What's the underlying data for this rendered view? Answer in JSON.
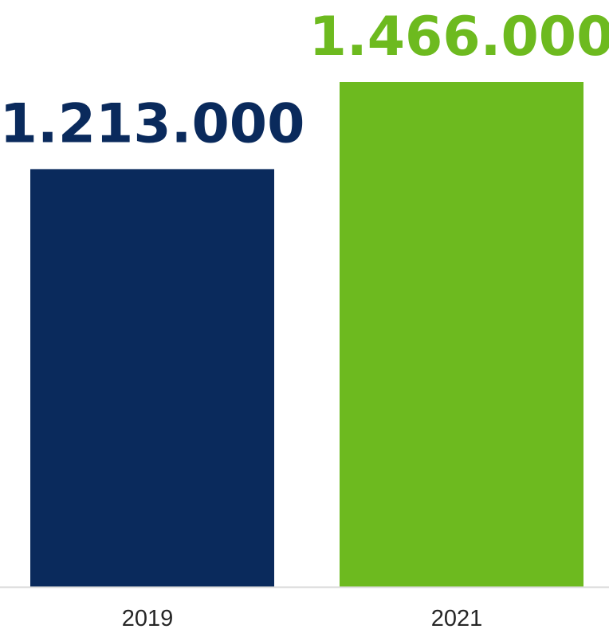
{
  "chart_data": {
    "type": "bar",
    "categories": [
      "2019",
      "2021"
    ],
    "values": [
      1213000,
      1466000
    ],
    "value_labels": [
      "1.213.000",
      "1.466.000"
    ],
    "colors": [
      "#0a2a5c",
      "#6dba1f"
    ],
    "title": "",
    "xlabel": "",
    "ylabel": "",
    "ylim": [
      0,
      1466000
    ],
    "grid": false,
    "legend": "none"
  },
  "style": {
    "axis_color": "#d9d9d9",
    "tick_label_color": "#262626"
  }
}
